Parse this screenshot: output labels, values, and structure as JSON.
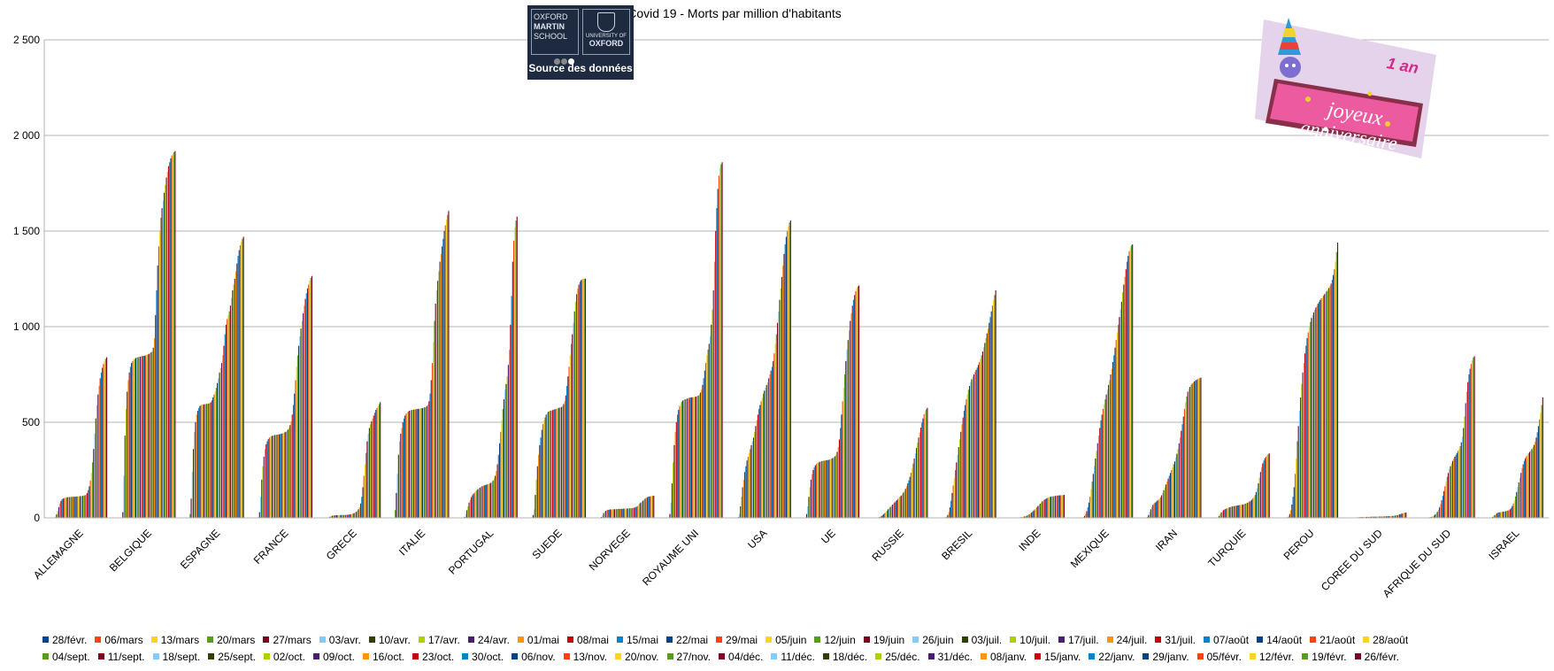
{
  "chart_data": {
    "type": "bar",
    "title": "Covid 19 - Morts par million d'habitants",
    "xlabel": "",
    "ylabel": "",
    "ylim": [
      0,
      2500
    ],
    "y_ticks": [
      "0",
      "500",
      "1 000",
      "1 500",
      "2 000",
      "2 500"
    ],
    "y_tick_values": [
      0,
      500,
      1000,
      1500,
      2000,
      2500
    ],
    "grid": true,
    "legend_position": "bottom",
    "categories": [
      "ALLEMAGNE",
      "BELGIQUE",
      "ESPAGNE",
      "FRANCE",
      "GRECE",
      "ITALIE",
      "PORTUGAL",
      "SUEDE",
      "NORVEGE",
      "ROYAUME UNI",
      "USA",
      "UE",
      "RUSSIE",
      "BRESIL",
      "INDE",
      "MEXIQUE",
      "IRAN",
      "TURQUIE",
      "PEROU",
      "COREE DU SUD",
      "AFRIQUE DU SUD",
      "ISRAEL"
    ],
    "series_names": [
      "28/févr.",
      "06/mars",
      "13/mars",
      "20/mars",
      "27/mars",
      "03/avr.",
      "10/avr.",
      "17/avr.",
      "24/avr.",
      "01/mai",
      "08/mai",
      "15/mai",
      "22/mai",
      "29/mai",
      "05/juin",
      "12/juin",
      "19/juin",
      "26/juin",
      "03/juil.",
      "10/juil.",
      "17/juil.",
      "24/juil.",
      "31/juil.",
      "07/août",
      "14/août",
      "21/août",
      "28/août",
      "04/sept.",
      "11/sept.",
      "18/sept.",
      "25/sept.",
      "02/oct.",
      "09/oct.",
      "16/oct.",
      "23/oct.",
      "30/oct.",
      "06/nov.",
      "13/nov.",
      "20/nov.",
      "27/nov.",
      "04/déc.",
      "11/déc.",
      "18/déc.",
      "25/déc.",
      "31/déc.",
      "08/janv.",
      "15/janv.",
      "22/janv.",
      "29/janv.",
      "05/févr.",
      "12/févr.",
      "19/févr.",
      "26/févr."
    ],
    "series_colors": [
      "#004586",
      "#ff420e",
      "#ffd320",
      "#579d1c",
      "#7e0021",
      "#83caff",
      "#314004",
      "#aecf00",
      "#4b1f6f",
      "#ff950e",
      "#c5000b",
      "#0084d1"
    ],
    "values_by_category": [
      [
        0,
        0,
        0,
        0,
        1,
        7,
        19,
        35,
        56,
        75,
        89,
        97,
        101,
        104,
        106,
        107,
        108,
        108,
        109,
        109,
        110,
        110,
        110,
        111,
        111,
        112,
        112,
        113,
        114,
        114,
        115,
        116,
        118,
        122,
        130,
        145,
        165,
        195,
        235,
        290,
        360,
        440,
        520,
        590,
        645,
        690,
        730,
        760,
        785,
        805,
        820,
        832,
        840
      ],
      [
        0,
        0,
        0,
        2,
        30,
        220,
        430,
        570,
        660,
        720,
        760,
        790,
        810,
        820,
        828,
        832,
        836,
        838,
        840,
        842,
        843,
        845,
        846,
        847,
        848,
        850,
        852,
        855,
        858,
        862,
        866,
        872,
        890,
        940,
        1060,
        1190,
        1320,
        1420,
        1500,
        1570,
        1620,
        1660,
        1700,
        1740,
        1780,
        1810,
        1840,
        1860,
        1880,
        1895,
        1905,
        1912,
        1918
      ],
      [
        0,
        0,
        1,
        20,
        100,
        240,
        360,
        450,
        500,
        540,
        560,
        575,
        585,
        590,
        592,
        593,
        594,
        595,
        596,
        597,
        598,
        600,
        605,
        615,
        630,
        645,
        660,
        680,
        705,
        730,
        760,
        785,
        810,
        850,
        900,
        960,
        1010,
        1040,
        1060,
        1080,
        1110,
        1150,
        1190,
        1220,
        1250,
        1290,
        1330,
        1370,
        1400,
        1425,
        1445,
        1460,
        1470
      ],
      [
        0,
        0,
        0,
        3,
        30,
        110,
        200,
        270,
        320,
        360,
        385,
        400,
        412,
        420,
        425,
        428,
        430,
        432,
        433,
        434,
        435,
        436,
        437,
        438,
        440,
        442,
        444,
        447,
        450,
        455,
        462,
        470,
        485,
        505,
        540,
        590,
        650,
        720,
        790,
        850,
        900,
        950,
        990,
        1030,
        1070,
        1110,
        1145,
        1175,
        1200,
        1220,
        1240,
        1255,
        1265
      ],
      [
        0,
        0,
        0,
        0,
        1,
        3,
        6,
        9,
        11,
        12,
        13,
        13,
        14,
        14,
        14,
        14,
        15,
        15,
        15,
        15,
        15,
        16,
        16,
        17,
        18,
        19,
        20,
        22,
        25,
        28,
        32,
        38,
        45,
        55,
        75,
        110,
        160,
        220,
        280,
        340,
        400,
        440,
        470,
        490,
        505,
        520,
        535,
        550,
        565,
        575,
        585,
        595,
        605
      ],
      [
        0,
        0,
        1,
        40,
        130,
        230,
        330,
        400,
        440,
        470,
        500,
        520,
        535,
        545,
        552,
        556,
        560,
        562,
        564,
        565,
        566,
        567,
        568,
        569,
        570,
        571,
        572,
        573,
        574,
        576,
        578,
        580,
        585,
        592,
        610,
        650,
        720,
        810,
        920,
        1030,
        1120,
        1190,
        1240,
        1290,
        1340,
        1380,
        1420,
        1460,
        1500,
        1530,
        1560,
        1585,
        1605
      ],
      [
        0,
        0,
        0,
        1,
        5,
        20,
        40,
        60,
        80,
        95,
        108,
        118,
        126,
        132,
        138,
        144,
        150,
        154,
        158,
        162,
        165,
        168,
        170,
        172,
        174,
        176,
        178,
        180,
        183,
        188,
        195,
        205,
        220,
        245,
        280,
        330,
        390,
        450,
        510,
        570,
        620,
        670,
        700,
        740,
        800,
        880,
        1010,
        1160,
        1340,
        1450,
        1520,
        1555,
        1575
      ],
      [
        0,
        0,
        0,
        3,
        15,
        45,
        120,
        200,
        270,
        330,
        380,
        420,
        460,
        490,
        510,
        525,
        540,
        550,
        555,
        558,
        560,
        562,
        564,
        566,
        568,
        570,
        572,
        574,
        576,
        578,
        580,
        585,
        595,
        610,
        640,
        690,
        740,
        790,
        850,
        910,
        960,
        1020,
        1080,
        1130,
        1170,
        1200,
        1220,
        1235,
        1243,
        1247,
        1249,
        1250,
        1251
      ],
      [
        0,
        0,
        0,
        1,
        5,
        15,
        25,
        32,
        37,
        40,
        42,
        43,
        44,
        44,
        45,
        45,
        45,
        46,
        46,
        46,
        47,
        47,
        47,
        47,
        48,
        48,
        48,
        49,
        49,
        49,
        50,
        50,
        51,
        52,
        53,
        55,
        58,
        62,
        68,
        75,
        80,
        85,
        90,
        95,
        100,
        105,
        108,
        110,
        112,
        113,
        114,
        115,
        116
      ],
      [
        0,
        0,
        0,
        1,
        20,
        80,
        180,
        290,
        380,
        450,
        500,
        540,
        565,
        585,
        600,
        608,
        614,
        618,
        620,
        622,
        624,
        626,
        628,
        629,
        630,
        631,
        632,
        633,
        634,
        636,
        639,
        645,
        655,
        670,
        695,
        730,
        770,
        810,
        850,
        880,
        910,
        950,
        1010,
        1090,
        1190,
        1340,
        1500,
        1620,
        1720,
        1790,
        1830,
        1850,
        1860
      ],
      [
        0,
        0,
        0,
        0,
        4,
        20,
        60,
        110,
        160,
        200,
        240,
        270,
        300,
        320,
        340,
        360,
        380,
        400,
        420,
        450,
        480,
        510,
        540,
        570,
        590,
        610,
        630,
        650,
        665,
        680,
        695,
        710,
        730,
        750,
        770,
        790,
        820,
        860,
        910,
        960,
        1020,
        1080,
        1140,
        1200,
        1260,
        1320,
        1380,
        1430,
        1470,
        1500,
        1525,
        1545,
        1555
      ],
      [
        0,
        0,
        0,
        2,
        20,
        60,
        110,
        160,
        200,
        230,
        250,
        265,
        275,
        282,
        287,
        290,
        293,
        295,
        297,
        298,
        299,
        300,
        301,
        302,
        303,
        305,
        307,
        310,
        313,
        317,
        322,
        330,
        345,
        370,
        410,
        470,
        540,
        610,
        680,
        750,
        820,
        880,
        930,
        980,
        1030,
        1070,
        1110,
        1140,
        1165,
        1185,
        1200,
        1210,
        1215
      ],
      [
        0,
        0,
        0,
        0,
        0,
        0,
        1,
        2,
        4,
        6,
        10,
        15,
        20,
        26,
        32,
        38,
        45,
        51,
        57,
        63,
        69,
        75,
        81,
        87,
        93,
        99,
        105,
        111,
        117,
        124,
        132,
        141,
        152,
        165,
        180,
        196,
        215,
        236,
        259,
        284,
        310,
        337,
        365,
        393,
        420,
        446,
        472,
        497,
        520,
        542,
        558,
        568,
        575
      ],
      [
        0,
        0,
        0,
        0,
        0,
        1,
        3,
        7,
        15,
        30,
        55,
        90,
        130,
        170,
        210,
        250,
        290,
        330,
        370,
        410,
        450,
        490,
        525,
        560,
        590,
        620,
        645,
        670,
        690,
        710,
        725,
        738,
        750,
        762,
        774,
        786,
        800,
        815,
        832,
        850,
        870,
        892,
        915,
        940,
        965,
        990,
        1020,
        1050,
        1080,
        1110,
        1140,
        1165,
        1190
      ],
      [
        0,
        0,
        0,
        0,
        0,
        0,
        0,
        1,
        1,
        1,
        2,
        2,
        3,
        4,
        5,
        6,
        8,
        10,
        12,
        15,
        18,
        22,
        27,
        32,
        38,
        44,
        50,
        56,
        62,
        68,
        74,
        80,
        86,
        91,
        95,
        99,
        102,
        105,
        107,
        109,
        111,
        112,
        113,
        114,
        115,
        116,
        117,
        117,
        118,
        118,
        119,
        119,
        120
      ],
      [
        0,
        0,
        0,
        0,
        0,
        1,
        2,
        5,
        10,
        20,
        35,
        55,
        80,
        110,
        150,
        190,
        230,
        270,
        310,
        350,
        390,
        430,
        470,
        510,
        540,
        570,
        595,
        620,
        645,
        670,
        695,
        720,
        750,
        780,
        815,
        850,
        890,
        930,
        970,
        1010,
        1050,
        1090,
        1130,
        1180,
        1220,
        1260,
        1300,
        1340,
        1370,
        1395,
        1415,
        1425,
        1430
      ],
      [
        0,
        0,
        1,
        5,
        15,
        30,
        45,
        58,
        68,
        75,
        80,
        85,
        90,
        95,
        100,
        108,
        118,
        130,
        145,
        160,
        175,
        190,
        205,
        220,
        235,
        250,
        265,
        280,
        295,
        315,
        335,
        360,
        390,
        420,
        455,
        490,
        530,
        570,
        605,
        635,
        660,
        675,
        685,
        695,
        702,
        708,
        713,
        718,
        722,
        726,
        729,
        731,
        733
      ],
      [
        0,
        0,
        0,
        0,
        0,
        3,
        10,
        20,
        28,
        35,
        40,
        44,
        47,
        50,
        52,
        54,
        56,
        58,
        60,
        61,
        62,
        63,
        64,
        65,
        66,
        67,
        68,
        69,
        70,
        72,
        74,
        76,
        79,
        82,
        86,
        90,
        95,
        102,
        110,
        120,
        135,
        155,
        180,
        210,
        240,
        265,
        285,
        300,
        312,
        320,
        327,
        332,
        337
      ],
      [
        0,
        0,
        0,
        0,
        0,
        1,
        3,
        8,
        20,
        40,
        70,
        110,
        160,
        230,
        310,
        400,
        480,
        560,
        630,
        700,
        760,
        810,
        860,
        900,
        940,
        970,
        1000,
        1025,
        1045,
        1060,
        1075,
        1088,
        1100,
        1110,
        1120,
        1130,
        1140,
        1148,
        1155,
        1162,
        1170,
        1178,
        1186,
        1194,
        1202,
        1212,
        1225,
        1245,
        1270,
        1300,
        1340,
        1390,
        1440
      ],
      [
        0,
        0,
        0,
        1,
        1,
        2,
        2,
        3,
        3,
        3,
        4,
        4,
        4,
        4,
        5,
        5,
        5,
        5,
        5,
        5,
        6,
        6,
        6,
        6,
        6,
        6,
        7,
        7,
        7,
        7,
        7,
        7,
        8,
        8,
        8,
        8,
        9,
        9,
        9,
        10,
        10,
        11,
        12,
        13,
        14,
        16,
        18,
        20,
        22,
        24,
        26,
        27,
        28
      ],
      [
        0,
        0,
        0,
        0,
        0,
        0,
        0,
        1,
        1,
        1,
        2,
        3,
        4,
        6,
        9,
        13,
        18,
        24,
        32,
        42,
        55,
        72,
        92,
        115,
        140,
        165,
        190,
        215,
        235,
        255,
        270,
        285,
        298,
        310,
        320,
        330,
        340,
        350,
        360,
        375,
        395,
        425,
        470,
        530,
        600,
        660,
        710,
        750,
        780,
        805,
        825,
        838,
        845
      ],
      [
        0,
        0,
        0,
        0,
        1,
        2,
        5,
        10,
        15,
        20,
        24,
        27,
        29,
        30,
        31,
        32,
        33,
        34,
        35,
        36,
        38,
        41,
        45,
        52,
        62,
        75,
        92,
        112,
        135,
        160,
        185,
        210,
        235,
        260,
        280,
        298,
        312,
        322,
        330,
        338,
        345,
        352,
        360,
        370,
        382,
        398,
        420,
        448,
        480,
        515,
        550,
        590,
        630
      ]
    ]
  },
  "logo": {
    "left_lines": [
      "OXFORD",
      "MARTIN",
      "SCHOOL"
    ],
    "right_top": "UNIVERSITY OF",
    "right_name": "OXFORD",
    "caption": "Source des données"
  },
  "badge": {
    "big_text_1": "joyeux",
    "big_text_2": "anniversaire",
    "small_text": "1 an"
  }
}
